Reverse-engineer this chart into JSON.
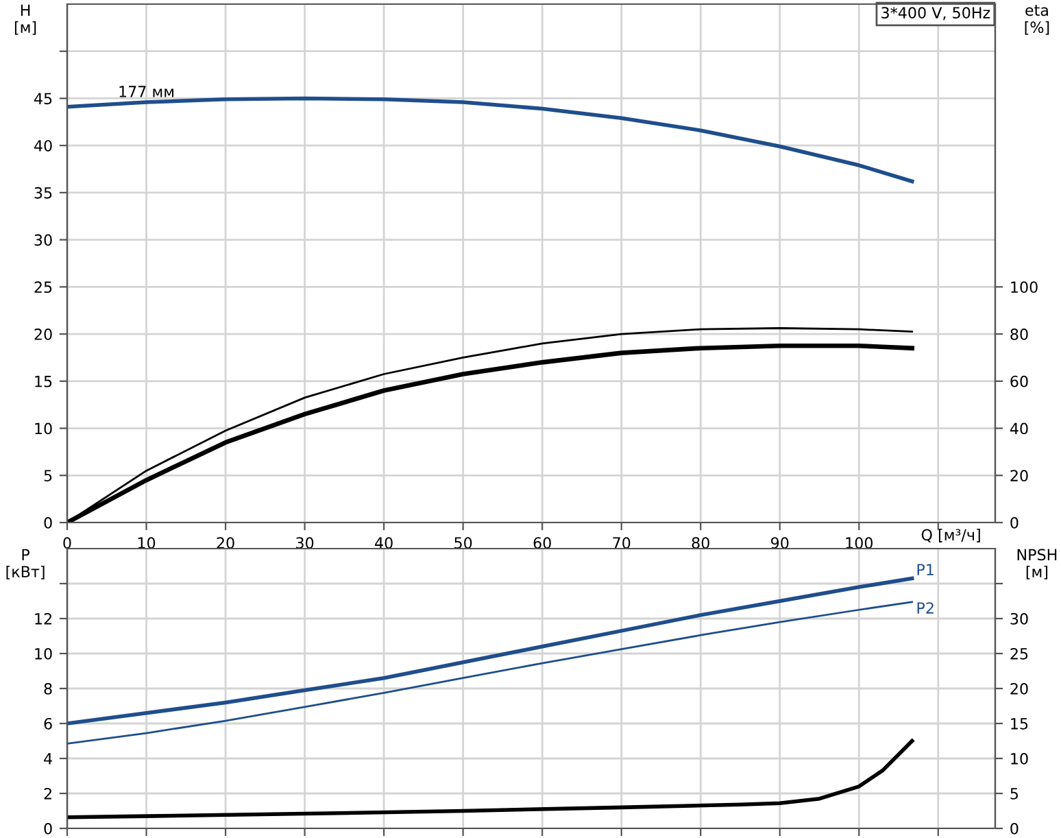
{
  "chart_data": [
    {
      "type": "line",
      "xlabel": "Q [м³/ч]",
      "ylabel": "H\n[м]",
      "y2label": "eta\n[%]",
      "grid": true,
      "legend": false,
      "marker": "none",
      "line_style": "solid",
      "xlim": [
        0,
        117.2
      ],
      "xticks": [
        0,
        10,
        20,
        30,
        40,
        50,
        60,
        70,
        80,
        90,
        100,
        {
          "value": 110,
          "label": null
        }
      ],
      "ylim": [
        0,
        55
      ],
      "yticks": [
        0,
        5,
        10,
        15,
        20,
        25,
        30,
        35,
        40,
        45,
        {
          "value": 50,
          "label": null
        }
      ],
      "y2lim": [
        0,
        220
      ],
      "y2ticks": [
        0,
        20,
        40,
        60,
        80,
        100
      ],
      "annotations": [
        {
          "text": "177 мм",
          "x": 10,
          "y": 44.6
        },
        "3*400 V, 50Hz"
      ],
      "series": [
        {
          "color": "#1f4e8c",
          "x": [
            0,
            10,
            20,
            30,
            40,
            50,
            60,
            70,
            80,
            90,
            100,
            106.7
          ],
          "values": [
            44.1,
            44.6,
            44.9,
            45.0,
            44.9,
            44.6,
            43.9,
            42.9,
            41.6,
            39.9,
            37.9,
            36.2
          ]
        },
        {
          "color": "#000000",
          "axis": "y2",
          "x": [
            0,
            10,
            20,
            30,
            40,
            50,
            60,
            70,
            80,
            90,
            100,
            106.7
          ],
          "values": [
            0,
            22,
            39,
            53,
            63,
            70,
            76,
            80,
            82,
            82.5,
            82,
            81
          ]
        },
        {
          "color": "#000000",
          "axis": "y2",
          "x": [
            0,
            10,
            20,
            30,
            40,
            50,
            60,
            70,
            80,
            90,
            100,
            106.7
          ],
          "values": [
            0,
            18,
            34,
            46,
            56,
            63,
            68,
            72,
            74,
            75,
            75,
            74
          ]
        }
      ]
    },
    {
      "type": "line",
      "ylabel": "P\n[кВт]",
      "y2label": "NPSH\n[м]",
      "grid": true,
      "legend": false,
      "marker": "none",
      "line_style": "solid",
      "tick_labels": "y",
      "xlim": [
        0,
        117.2
      ],
      "xticks": [
        0,
        10,
        20,
        30,
        40,
        50,
        60,
        70,
        80,
        90,
        100,
        {
          "value": 110,
          "label": null
        }
      ],
      "ylim": [
        0,
        16
      ],
      "yticks": [
        0,
        2,
        4,
        6,
        8,
        10,
        12,
        {
          "value": 14,
          "label": null
        }
      ],
      "y2lim": [
        0,
        40
      ],
      "y2ticks": [
        0,
        5,
        10,
        15,
        20,
        25,
        30,
        {
          "value": 35,
          "label": null
        }
      ],
      "series": [
        {
          "name": "P1",
          "color": "#1f4e8c",
          "x": [
            0,
            10,
            20,
            30,
            40,
            50,
            60,
            70,
            80,
            90,
            100,
            106.7
          ],
          "values": [
            6.0,
            6.6,
            7.2,
            7.9,
            8.6,
            9.5,
            10.4,
            11.3,
            12.2,
            13.0,
            13.8,
            14.3
          ]
        },
        {
          "name": "P2",
          "color": "#1f4e8c",
          "x": [
            0,
            10,
            20,
            30,
            40,
            50,
            60,
            70,
            80,
            90,
            100,
            106.7
          ],
          "values": [
            4.85,
            5.45,
            6.15,
            6.95,
            7.75,
            8.6,
            9.45,
            10.25,
            11.05,
            11.8,
            12.5,
            12.95
          ]
        },
        {
          "color": "#000000",
          "axis": "y2",
          "x": [
            0,
            10,
            30,
            50,
            70,
            85,
            90,
            95,
            100,
            103,
            106.7
          ],
          "values": [
            1.6,
            1.75,
            2.1,
            2.5,
            3.0,
            3.4,
            3.6,
            4.25,
            6,
            8.3,
            12.5
          ]
        }
      ]
    }
  ]
}
